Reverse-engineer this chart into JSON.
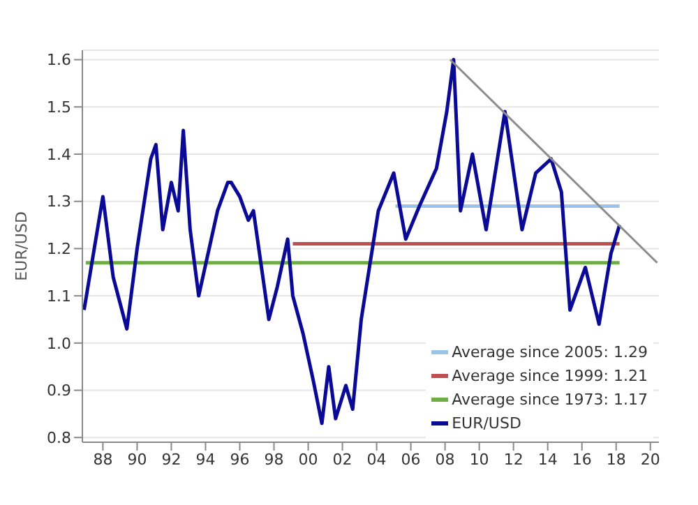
{
  "chart_data": {
    "type": "line",
    "ylabel": "EUR/USD",
    "xlim": [
      1986.8,
      2020.5
    ],
    "xticks": [
      {
        "value": 1988,
        "label": "88"
      },
      {
        "value": 1990,
        "label": "90"
      },
      {
        "value": 1992,
        "label": "92"
      },
      {
        "value": 1994,
        "label": "94"
      },
      {
        "value": 1996,
        "label": "96"
      },
      {
        "value": 1998,
        "label": "98"
      },
      {
        "value": 2000,
        "label": "00"
      },
      {
        "value": 2002,
        "label": "02"
      },
      {
        "value": 2004,
        "label": "04"
      },
      {
        "value": 2006,
        "label": "06"
      },
      {
        "value": 2008,
        "label": "08"
      },
      {
        "value": 2010,
        "label": "10"
      },
      {
        "value": 2012,
        "label": "12"
      },
      {
        "value": 2014,
        "label": "14"
      },
      {
        "value": 2016,
        "label": "16"
      },
      {
        "value": 2018,
        "label": "18"
      },
      {
        "value": 2020,
        "label": "20"
      }
    ],
    "ylim": [
      0.79,
      1.62
    ],
    "yticks": [
      0.8,
      0.9,
      {
        "value": 1,
        "label": "1.0"
      },
      1.1,
      1.2,
      1.3,
      1.4,
      1.5,
      1.6
    ],
    "grid": "y",
    "legend": "bottom right",
    "series": [
      {
        "name": "Average since 2005: 1.29",
        "color": "#9dc3e6",
        "x": [
          2005.1,
          2018.2
        ],
        "values": [
          1.29,
          1.29
        ]
      },
      {
        "name": "Average since 1999: 1.21",
        "color": "#c0504d",
        "x": [
          1999.1,
          2018.2
        ],
        "values": [
          1.21,
          1.21
        ]
      },
      {
        "name": "Average since 1973: 1.17",
        "color": "#70ad47",
        "x": [
          1987,
          2018.2
        ],
        "values": [
          1.17,
          1.17
        ]
      },
      {
        "name": "EUR/USD",
        "color": "#0a0a96",
        "x": [
          1986.9,
          1988.0,
          1988.6,
          1989.4,
          1990.0,
          1990.8,
          1991.1,
          1991.5,
          1992.0,
          1992.4,
          1992.7,
          1993.1,
          1993.6,
          1994.7,
          1995.3,
          1995.5,
          1996.0,
          1996.5,
          1996.8,
          1997.7,
          1998.2,
          1998.8,
          1999.1,
          1999.7,
          2000.3,
          2000.8,
          2001.2,
          2001.6,
          2002.2,
          2002.6,
          2003.1,
          2004.1,
          2005.0,
          2005.7,
          2006.5,
          2007.5,
          2008.1,
          2008.5,
          2008.9,
          2009.6,
          2010.4,
          2011.5,
          2012.5,
          2013.3,
          2014.2,
          2014.8,
          2015.3,
          2016.2,
          2017.0,
          2017.7,
          2018.2
        ],
        "values": [
          1.07,
          1.31,
          1.14,
          1.03,
          1.2,
          1.39,
          1.42,
          1.24,
          1.34,
          1.28,
          1.45,
          1.24,
          1.1,
          1.28,
          1.34,
          1.34,
          1.31,
          1.26,
          1.28,
          1.05,
          1.12,
          1.22,
          1.1,
          1.02,
          0.92,
          0.83,
          0.95,
          0.84,
          0.91,
          0.86,
          1.05,
          1.28,
          1.36,
          1.22,
          1.29,
          1.37,
          1.49,
          1.6,
          1.28,
          1.4,
          1.24,
          1.49,
          1.24,
          1.36,
          1.39,
          1.32,
          1.07,
          1.16,
          1.04,
          1.19,
          1.25
        ]
      },
      {
        "type": "line",
        "color": "#8c8c8c",
        "x": [
          2008.3,
          2020.4
        ],
        "values": [
          1.6,
          1.17
        ]
      }
    ]
  }
}
